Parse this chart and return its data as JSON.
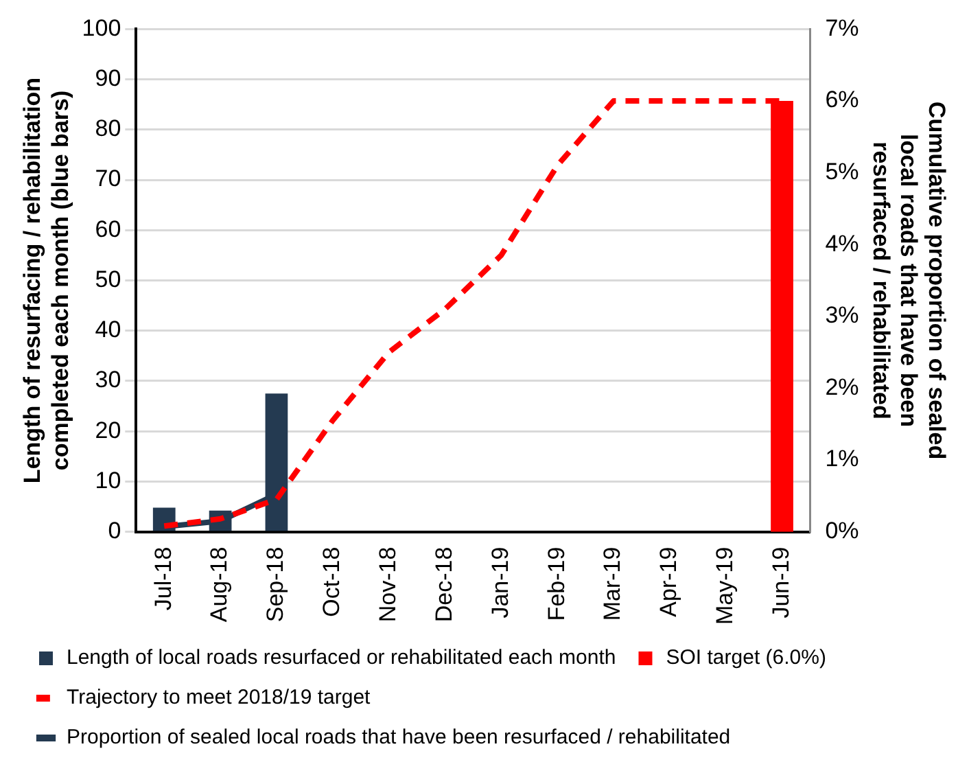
{
  "chart_data": {
    "type": "bar",
    "ylabel": "Length of resurfacing / rehabilitation completed each month (blue bars)",
    "y2label": "Cumulative proportion of sealed local roads that have been resurfaced / rehabilitated",
    "categories": [
      "Jul-18",
      "Aug-18",
      "Sep-18",
      "Oct-18",
      "Nov-18",
      "Dec-18",
      "Jan-19",
      "Feb-19",
      "Mar-19",
      "Apr-19",
      "May-19",
      "Jun-19"
    ],
    "series": [
      {
        "name": "Length of local roads resurfaced or rehabilitated each month",
        "color": "#243a51",
        "values": [
          4.8,
          4.2,
          27.5,
          null,
          null,
          null,
          null,
          null,
          null,
          null,
          null,
          null
        ]
      },
      {
        "name": "SOI target (6.0%)",
        "axis": "y2",
        "color": "#ff0000",
        "values": [
          null,
          null,
          null,
          null,
          null,
          null,
          null,
          null,
          null,
          null,
          null,
          6.0
        ]
      },
      {
        "name": "Trajectory to meet 2018/19 target",
        "type": "line",
        "axis": "y2",
        "color": "#ff0000",
        "line_style": "dashed",
        "values": [
          0.08,
          0.18,
          0.45,
          1.55,
          2.5,
          3.1,
          3.85,
          5.1,
          6.0,
          6.0,
          6.0,
          6.0
        ]
      },
      {
        "name": "Proportion of sealed local roads that have been resurfaced / rehabilitated",
        "type": "line",
        "axis": "y2",
        "color": "#243a51",
        "line_style": "solid",
        "values": [
          0.07,
          0.15,
          0.52,
          null,
          null,
          null,
          null,
          null,
          null,
          null,
          null,
          null
        ]
      }
    ],
    "ylim": [
      0,
      100
    ],
    "yticks": [
      0,
      10,
      20,
      30,
      40,
      50,
      60,
      70,
      80,
      90,
      100
    ],
    "y2lim": [
      0,
      7
    ],
    "y2ticks": [
      {
        "value": 0,
        "label": "0%"
      },
      {
        "value": 1,
        "label": "1%"
      },
      {
        "value": 2,
        "label": "2%"
      },
      {
        "value": 3,
        "label": "3%"
      },
      {
        "value": 4,
        "label": "4%"
      },
      {
        "value": 5,
        "label": "5%"
      },
      {
        "value": 6,
        "label": "6%"
      },
      {
        "value": 7,
        "label": "7%"
      }
    ],
    "grid": "y",
    "legend": "bottom"
  }
}
